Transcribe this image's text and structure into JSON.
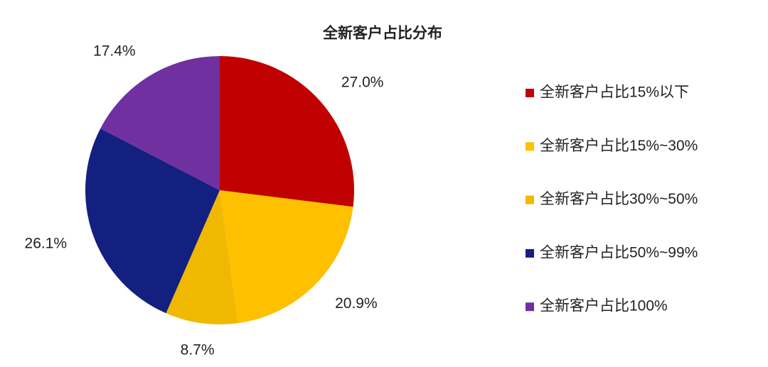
{
  "chart_data": {
    "type": "pie",
    "title": "全新客户占比分布",
    "categories": [
      "全新客户占比15%以下",
      "全新客户占比15%~30%",
      "全新客户占比30%~50%",
      "全新客户占比50%~99%",
      "全新客户占比100%"
    ],
    "values": [
      27.0,
      20.9,
      8.7,
      26.1,
      17.4
    ],
    "value_labels": [
      "27.0%",
      "20.9%",
      "8.7%",
      "26.1%",
      "17.4%"
    ],
    "colors": [
      "#c00000",
      "#ffc000",
      "#f0b800",
      "#13207f",
      "#7030a0"
    ],
    "legend": "right"
  }
}
